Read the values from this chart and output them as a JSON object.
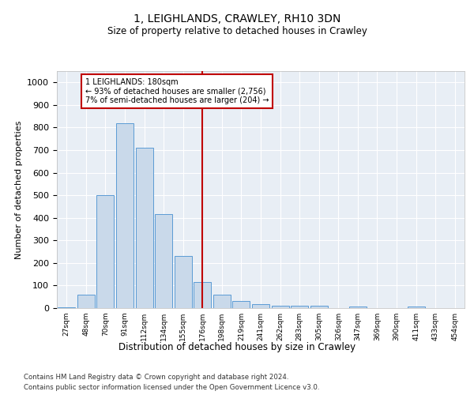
{
  "title": "1, LEIGHLANDS, CRAWLEY, RH10 3DN",
  "subtitle": "Size of property relative to detached houses in Crawley",
  "xlabel": "Distribution of detached houses by size in Crawley",
  "ylabel": "Number of detached properties",
  "categories": [
    "27sqm",
    "48sqm",
    "70sqm",
    "91sqm",
    "112sqm",
    "134sqm",
    "155sqm",
    "176sqm",
    "198sqm",
    "219sqm",
    "241sqm",
    "262sqm",
    "283sqm",
    "305sqm",
    "326sqm",
    "347sqm",
    "369sqm",
    "390sqm",
    "411sqm",
    "433sqm",
    "454sqm"
  ],
  "values": [
    5,
    60,
    500,
    820,
    710,
    415,
    230,
    115,
    60,
    32,
    18,
    12,
    12,
    12,
    0,
    8,
    0,
    0,
    8,
    0,
    0
  ],
  "bar_color": "#c9d9ea",
  "bar_edge_color": "#5b9bd5",
  "background_color": "#e8eef5",
  "vline_x_index": 7,
  "vline_color": "#c00000",
  "annotation_line1": "1 LEIGHLANDS: 180sqm",
  "annotation_line2": "← 93% of detached houses are smaller (2,756)",
  "annotation_line3": "7% of semi-detached houses are larger (204) →",
  "annotation_box_facecolor": "#ffffff",
  "annotation_box_edgecolor": "#c00000",
  "ylim": [
    0,
    1050
  ],
  "yticks": [
    0,
    100,
    200,
    300,
    400,
    500,
    600,
    700,
    800,
    900,
    1000
  ],
  "footer_line1": "Contains HM Land Registry data © Crown copyright and database right 2024.",
  "footer_line2": "Contains public sector information licensed under the Open Government Licence v3.0."
}
